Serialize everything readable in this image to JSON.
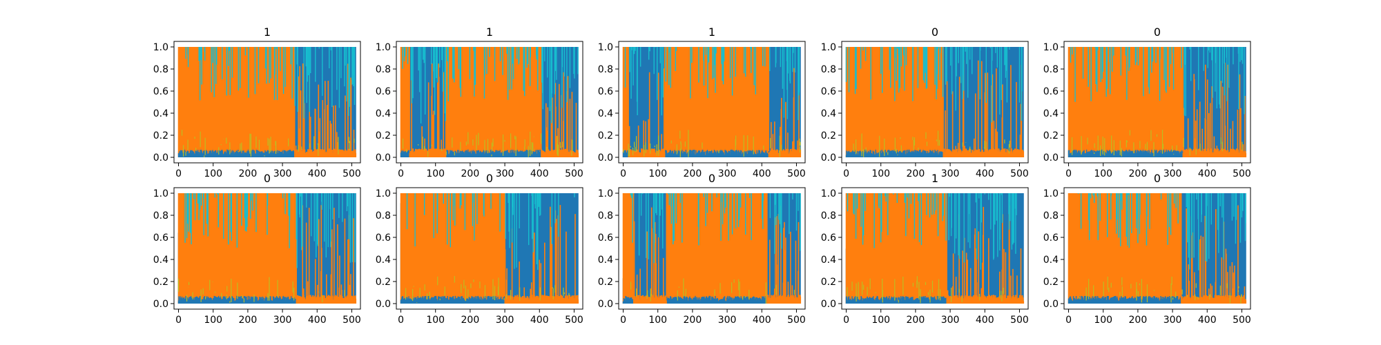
{
  "chart_data": {
    "type": "line",
    "layout": "2x5 small multiples",
    "description_note": "",
    "x_range": [
      0,
      511
    ],
    "xlim": [
      -13,
      525
    ],
    "ylim": [
      -0.05,
      1.05
    ],
    "xticks": [
      0,
      100,
      200,
      300,
      400,
      500
    ],
    "yticks": [
      0.0,
      0.2,
      0.4,
      0.6,
      0.8,
      1.0
    ],
    "xtick_labels": [
      "0",
      "100",
      "200",
      "300",
      "400",
      "500"
    ],
    "ytick_labels": [
      "0.0",
      "0.2",
      "0.4",
      "0.6",
      "0.8",
      "1.0"
    ],
    "grid": false,
    "legend": "none",
    "series_colors": {
      "blue": "#1f77b4",
      "orange": "#ff7f0e",
      "cyan": "#17becf",
      "olive": "#bcbd22",
      "green": "#2ca02c",
      "purple": "#9467bd",
      "pink": "#e377c2"
    },
    "panels": [
      {
        "title": "1",
        "orange_dominant_segments": [
          [
            0,
            335
          ]
        ]
      },
      {
        "title": "1",
        "orange_dominant_segments": [
          [
            0,
            25
          ],
          [
            130,
            405
          ]
        ]
      },
      {
        "title": "1",
        "orange_dominant_segments": [
          [
            0,
            15
          ],
          [
            120,
            420
          ]
        ]
      },
      {
        "title": "0",
        "orange_dominant_segments": [
          [
            0,
            280
          ]
        ]
      },
      {
        "title": "0",
        "orange_dominant_segments": [
          [
            0,
            330
          ]
        ]
      },
      {
        "title": "0",
        "orange_dominant_segments": [
          [
            0,
            340
          ]
        ]
      },
      {
        "title": "0",
        "orange_dominant_segments": [
          [
            0,
            300
          ]
        ]
      },
      {
        "title": "0",
        "orange_dominant_segments": [
          [
            0,
            30
          ],
          [
            125,
            415
          ]
        ]
      },
      {
        "title": "1",
        "orange_dominant_segments": [
          [
            0,
            290
          ]
        ]
      },
      {
        "title": "0",
        "orange_dominant_segments": [
          [
            0,
            325
          ]
        ]
      }
    ]
  }
}
